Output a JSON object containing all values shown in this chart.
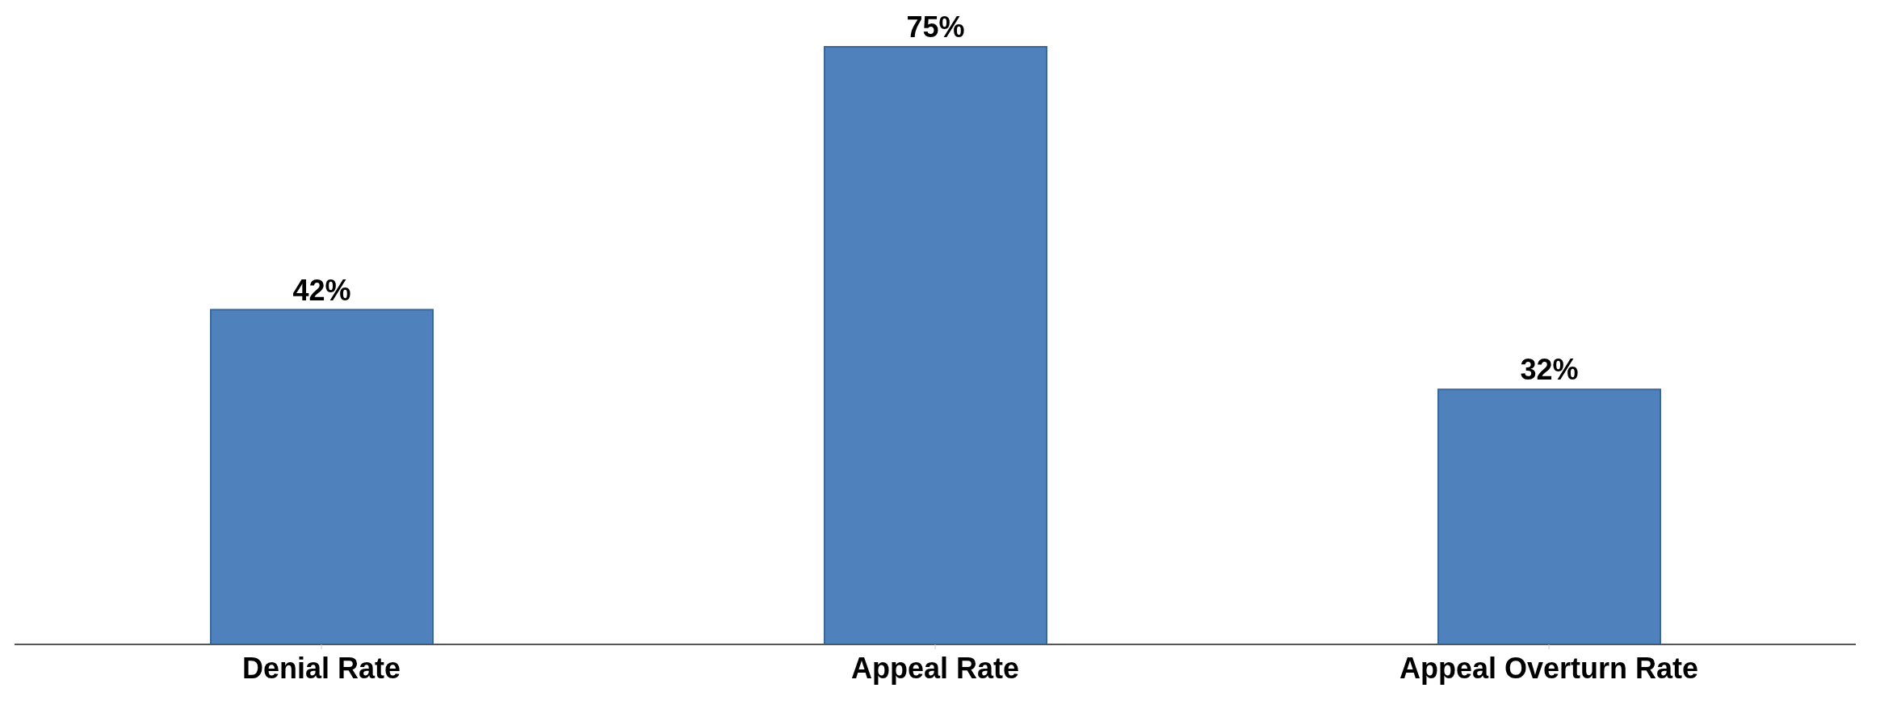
{
  "chart_data": {
    "type": "bar",
    "categories": [
      "Denial Rate",
      "Appeal Rate",
      "Appeal Overturn Rate"
    ],
    "values": [
      42,
      75,
      32
    ],
    "value_labels": [
      "42%",
      "75%",
      "32%"
    ],
    "color": "#4f81bd",
    "tick_labels": "x"
  }
}
